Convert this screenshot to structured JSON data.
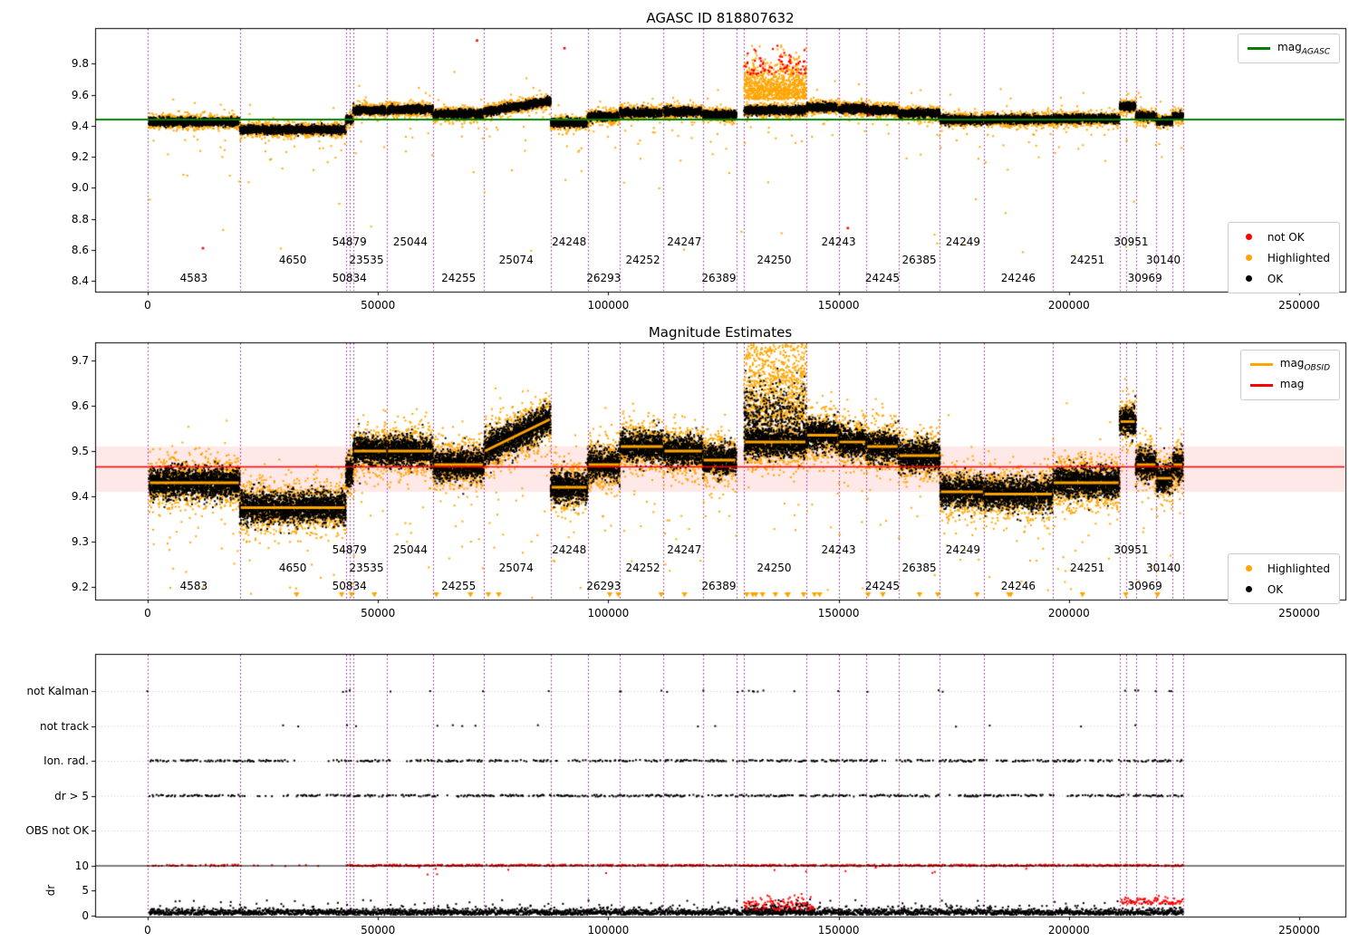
{
  "plot1": {
    "title": "AGASC ID 818807632",
    "legend_line": {
      "prefix": "mag",
      "sub": "AGASC",
      "color": "#008000"
    },
    "legend_points": [
      {
        "label": "not OK",
        "color": "#ff0000"
      },
      {
        "label": "Highlighted",
        "color": "#ffa500"
      },
      {
        "label": "OK",
        "color": "#000000"
      }
    ]
  },
  "plot2": {
    "title": "Magnitude Estimates",
    "legend_lines": [
      {
        "prefix": "mag",
        "sub": "OBSID",
        "color": "#ffa500"
      },
      {
        "prefix": "mag",
        "sub": "",
        "color": "#ff0000"
      }
    ],
    "legend_points": [
      {
        "label": "Highlighted",
        "color": "#ffa500"
      },
      {
        "label": "OK",
        "color": "#000000"
      }
    ]
  },
  "plot3": {
    "rows": [
      "not Kalman",
      "not track",
      "Ion. rad.",
      "dr > 5",
      "OBS not OK"
    ],
    "dr_label": "dr",
    "dr_ticks": [
      10,
      5,
      0
    ]
  },
  "boundaries": [
    0,
    20000,
    43000,
    43800,
    44600,
    52000,
    62000,
    73000,
    87500,
    95500,
    102500,
    112000,
    120500,
    127800,
    129500,
    143000,
    150000,
    156000,
    163000,
    172000,
    181500,
    196500,
    211000,
    212500,
    214500,
    219000,
    222500,
    224800
  ],
  "obsid_labels": [
    {
      "t": "4583",
      "x": 10000,
      "r": 2
    },
    {
      "t": "4650",
      "x": 31500,
      "r": 1
    },
    {
      "t": "54879",
      "x": 43800,
      "r": 0
    },
    {
      "t": "23535",
      "x": 47500,
      "r": 1
    },
    {
      "t": "50834",
      "x": 43800,
      "r": 2
    },
    {
      "t": "25044",
      "x": 57000,
      "r": 0
    },
    {
      "t": "24255",
      "x": 67500,
      "r": 2
    },
    {
      "t": "25074",
      "x": 80000,
      "r": 1
    },
    {
      "t": "24248",
      "x": 91500,
      "r": 0
    },
    {
      "t": "26293",
      "x": 99000,
      "r": 2
    },
    {
      "t": "24252",
      "x": 107500,
      "r": 1
    },
    {
      "t": "24247",
      "x": 116500,
      "r": 0
    },
    {
      "t": "26389",
      "x": 124000,
      "r": 2
    },
    {
      "t": "24250",
      "x": 136000,
      "r": 1
    },
    {
      "t": "24243",
      "x": 150000,
      "r": 0
    },
    {
      "t": "24245",
      "x": 159500,
      "r": 2
    },
    {
      "t": "26385",
      "x": 167500,
      "r": 1
    },
    {
      "t": "24249",
      "x": 177000,
      "r": 0
    },
    {
      "t": "24246",
      "x": 189000,
      "r": 2
    },
    {
      "t": "24251",
      "x": 204000,
      "r": 1
    },
    {
      "t": "30951",
      "x": 213500,
      "r": 0
    },
    {
      "t": "30969",
      "x": 216500,
      "r": 2
    },
    {
      "t": "30140",
      "x": 220500,
      "r": 1
    }
  ],
  "chart_data": [
    {
      "type": "scatter",
      "title": "AGASC ID 818807632",
      "xlabel": "",
      "ylabel": "",
      "xlim": [
        -11410,
        260025
      ],
      "xticks": [
        0,
        50000,
        100000,
        150000,
        200000,
        250000
      ],
      "ylim": [
        8.33,
        10.03
      ],
      "yticks": [
        8.4,
        8.6,
        8.8,
        9.0,
        9.2,
        9.4,
        9.6,
        9.8
      ],
      "legend_loc": [
        "upper right",
        "lower right"
      ],
      "legend": [
        "magAGASC",
        "not OK",
        "Highlighted",
        "OK"
      ],
      "ref_line": {
        "label": "magAGASC",
        "value": 9.44,
        "color": "#008000"
      },
      "series_colors": {
        "not_ok": "#ff0000",
        "highlighted": "#ffa500",
        "ok": "#000000"
      },
      "segments": [
        {
          "obsid": "4583",
          "x0": 300,
          "x1": 20000,
          "mag": 9.425
        },
        {
          "obsid": "4650",
          "x0": 20000,
          "x1": 43000,
          "mag": 9.375
        },
        {
          "obsid": "54879/50834",
          "x0": 43000,
          "x1": 44600,
          "mag": 9.44
        },
        {
          "obsid": "23535",
          "x0": 44600,
          "x1": 52000,
          "mag": 9.5
        },
        {
          "obsid": "25044",
          "x0": 52000,
          "x1": 62000,
          "mag": 9.505
        },
        {
          "obsid": "24255",
          "x0": 62000,
          "x1": 73000,
          "mag": 9.475
        },
        {
          "obsid": "25074",
          "x0": 73000,
          "x1": 87500,
          "mag": 9.49,
          "mag_end": 9.56
        },
        {
          "obsid": "24248",
          "x0": 87500,
          "x1": 95500,
          "mag": 9.42
        },
        {
          "obsid": "26293",
          "x0": 95500,
          "x1": 102500,
          "mag": 9.46
        },
        {
          "obsid": "24252",
          "x0": 102500,
          "x1": 112000,
          "mag": 9.485
        },
        {
          "obsid": "24247",
          "x0": 112000,
          "x1": 120500,
          "mag": 9.49
        },
        {
          "obsid": "26389",
          "x0": 120500,
          "x1": 127800,
          "mag": 9.47
        },
        {
          "obsid": "24250",
          "x0": 129500,
          "x1": 143000,
          "mag": 9.5,
          "flare": true
        },
        {
          "obsid": "24243",
          "x0": 143000,
          "x1": 150000,
          "mag": 9.52
        },
        {
          "obsid": "24243",
          "x0": 150000,
          "x1": 156000,
          "mag": 9.51
        },
        {
          "obsid": "24245",
          "x0": 156000,
          "x1": 163000,
          "mag": 9.5
        },
        {
          "obsid": "26385",
          "x0": 163000,
          "x1": 172000,
          "mag": 9.48
        },
        {
          "obsid": "24249",
          "x0": 172000,
          "x1": 181500,
          "mag": 9.44
        },
        {
          "obsid": "24246",
          "x0": 181500,
          "x1": 196500,
          "mag": 9.44
        },
        {
          "obsid": "24251",
          "x0": 196500,
          "x1": 211000,
          "mag": 9.445
        },
        {
          "obsid": "30951",
          "x0": 211000,
          "x1": 214500,
          "mag": 9.525
        },
        {
          "obsid": "30969",
          "x0": 214500,
          "x1": 219000,
          "mag": 9.46
        },
        {
          "obsid": "30969",
          "x0": 219000,
          "x1": 222500,
          "mag": 9.43
        },
        {
          "obsid": "30140",
          "x0": 222500,
          "x1": 224800,
          "mag": 9.46
        }
      ],
      "red_outliers": [
        [
          12000,
          8.61
        ],
        [
          71500,
          9.95
        ],
        [
          90500,
          9.9
        ],
        [
          152000,
          8.74
        ],
        [
          156700,
          9.47
        ]
      ],
      "flare": {
        "obsid": "24250",
        "x0": 129500,
        "x1": 143000,
        "orange_top": 9.9,
        "red_top": 9.95
      }
    },
    {
      "type": "scatter",
      "title": "Magnitude Estimates",
      "xlabel": "",
      "ylabel": "",
      "xlim": [
        -11410,
        260025
      ],
      "xticks": [
        0,
        50000,
        100000,
        150000,
        200000,
        250000
      ],
      "ylim": [
        9.172,
        9.74
      ],
      "yticks": [
        9.2,
        9.3,
        9.4,
        9.5,
        9.6,
        9.7
      ],
      "legend_loc": [
        "upper right",
        "lower right"
      ],
      "legend": [
        "magOBSID",
        "mag",
        "Highlighted",
        "OK"
      ],
      "ref_line": {
        "label": "mag",
        "value": 9.465,
        "color": "#ff0000"
      },
      "ref_band": [
        9.41,
        9.51
      ],
      "obsid_line_color": "#ffa500",
      "series_colors": {
        "highlighted": "#ffa500",
        "ok": "#000000"
      },
      "segments": [
        {
          "obsid": "4583",
          "x0": 300,
          "x1": 20000,
          "mag": 9.43
        },
        {
          "obsid": "4650",
          "x0": 20000,
          "x1": 43000,
          "mag": 9.375
        },
        {
          "obsid": "54879/50834",
          "x0": 43000,
          "x1": 44600,
          "mag": 9.45
        },
        {
          "obsid": "23535",
          "x0": 44600,
          "x1": 52000,
          "mag": 9.5
        },
        {
          "obsid": "25044",
          "x0": 52000,
          "x1": 62000,
          "mag": 9.5
        },
        {
          "obsid": "24255",
          "x0": 62000,
          "x1": 73000,
          "mag": 9.47
        },
        {
          "obsid": "25074",
          "x0": 73000,
          "x1": 87500,
          "mag": 9.5,
          "mag_end": 9.57
        },
        {
          "obsid": "24248",
          "x0": 87500,
          "x1": 95500,
          "mag": 9.42
        },
        {
          "obsid": "26293",
          "x0": 95500,
          "x1": 102500,
          "mag": 9.47
        },
        {
          "obsid": "24252",
          "x0": 102500,
          "x1": 112000,
          "mag": 9.51
        },
        {
          "obsid": "24247",
          "x0": 112000,
          "x1": 120500,
          "mag": 9.5
        },
        {
          "obsid": "26389",
          "x0": 120500,
          "x1": 127800,
          "mag": 9.48
        },
        {
          "obsid": "24250",
          "x0": 129500,
          "x1": 143000,
          "mag": 9.52,
          "flare": true
        },
        {
          "obsid": "24243",
          "x0": 143000,
          "x1": 150000,
          "mag": 9.535
        },
        {
          "obsid": "24243",
          "x0": 150000,
          "x1": 156000,
          "mag": 9.52
        },
        {
          "obsid": "24245",
          "x0": 156000,
          "x1": 163000,
          "mag": 9.51
        },
        {
          "obsid": "26385",
          "x0": 163000,
          "x1": 172000,
          "mag": 9.49
        },
        {
          "obsid": "24249",
          "x0": 172000,
          "x1": 181500,
          "mag": 9.41
        },
        {
          "obsid": "24246",
          "x0": 181500,
          "x1": 196500,
          "mag": 9.405
        },
        {
          "obsid": "24251",
          "x0": 196500,
          "x1": 211000,
          "mag": 9.43
        },
        {
          "obsid": "30951",
          "x0": 211000,
          "x1": 214500,
          "mag": 9.565
        },
        {
          "obsid": "30969",
          "x0": 214500,
          "x1": 219000,
          "mag": 9.47
        },
        {
          "obsid": "30969",
          "x0": 219000,
          "x1": 222500,
          "mag": 9.44
        },
        {
          "obsid": "30140",
          "x0": 222500,
          "x1": 224800,
          "mag": 9.47
        }
      ]
    },
    {
      "type": "flags",
      "rows": [
        "not Kalman",
        "not track",
        "Ion. rad.",
        "dr > 5",
        "OBS not OK"
      ],
      "xlim": [
        -11410,
        260025
      ],
      "xticks": [
        0,
        50000,
        100000,
        150000,
        200000,
        250000
      ],
      "dr": {
        "label": "dr",
        "ticks": [
          0,
          5,
          10
        ],
        "hline": 10,
        "flare": {
          "x0": 129500,
          "x1": 144500,
          "max": 5.5
        },
        "right_red_band": {
          "x0": 211300,
          "x1": 224800,
          "level": 2.6
        }
      },
      "colors": {
        "flags": "#000000",
        "dr": "#000000",
        "dr_flagged": "#ff0000",
        "boundary": "#800080"
      }
    }
  ]
}
